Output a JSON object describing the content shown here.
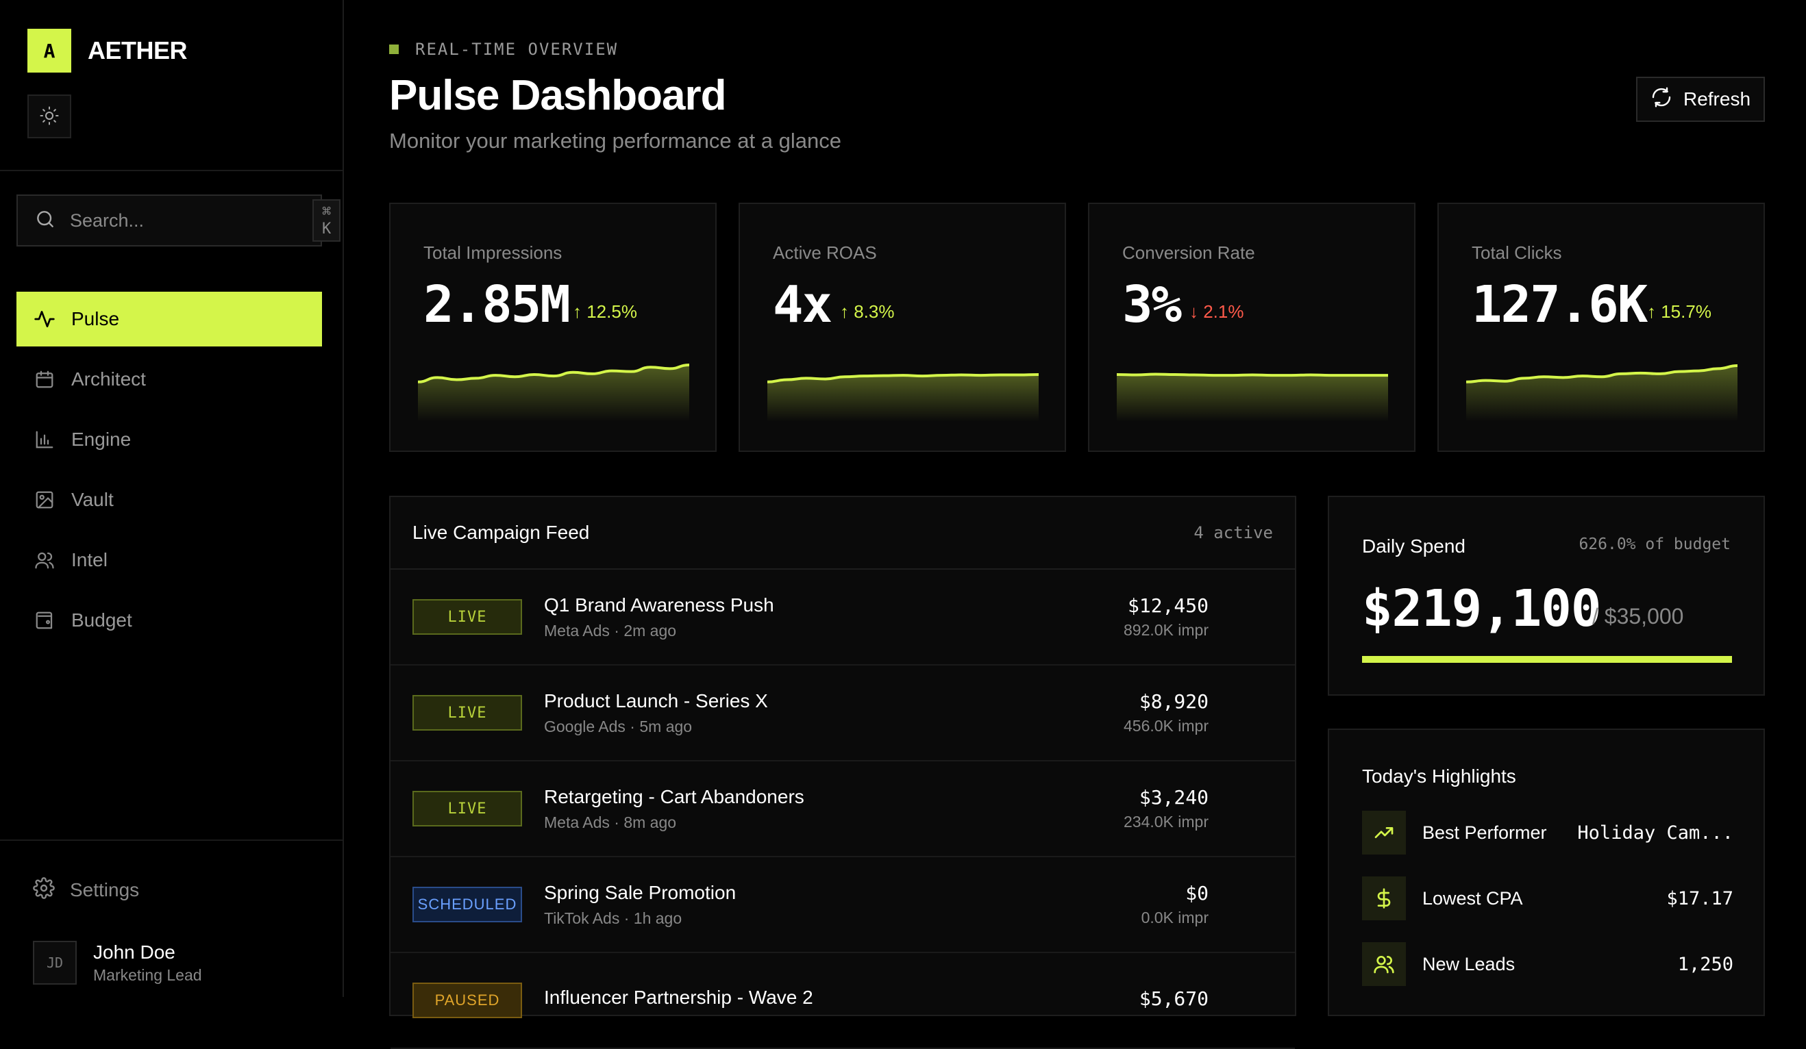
{
  "brand": {
    "logo": "A",
    "name": "AETHER"
  },
  "search": {
    "placeholder": "Search...",
    "shortcut": "⌘ K"
  },
  "nav": [
    {
      "label": "Pulse",
      "icon": "activity-icon",
      "active": true
    },
    {
      "label": "Architect",
      "icon": "calendar-icon"
    },
    {
      "label": "Engine",
      "icon": "bar-chart-icon"
    },
    {
      "label": "Vault",
      "icon": "image-icon"
    },
    {
      "label": "Intel",
      "icon": "users-icon"
    },
    {
      "label": "Budget",
      "icon": "wallet-icon"
    }
  ],
  "settings_label": "Settings",
  "user": {
    "initials": "JD",
    "name": "John Doe",
    "role": "Marketing Lead"
  },
  "header": {
    "eyebrow": "REAL-TIME OVERVIEW",
    "title": "Pulse Dashboard",
    "subtitle": "Monitor your marketing performance at a glance",
    "refresh_label": "Refresh"
  },
  "colors": {
    "accent": "#d4f54a",
    "negative": "#ff5a4a",
    "background": "#000000",
    "card": "#0a0a0a"
  },
  "kpis": [
    {
      "label": "Total Impressions",
      "value": "2.85M",
      "delta": "↑ 12.5%",
      "trend": "up",
      "spark": [
        30,
        42,
        36,
        40,
        48,
        44,
        50,
        46,
        56,
        52,
        60,
        58,
        70,
        66,
        76
      ]
    },
    {
      "label": "Active ROAS",
      "value": "4x",
      "delta": "↑ 8.3%",
      "trend": "up",
      "spark": [
        30,
        36,
        40,
        38,
        44,
        46,
        47,
        48,
        46,
        48,
        49,
        48,
        49,
        49,
        50
      ]
    },
    {
      "label": "Conversion Rate",
      "value": "3%",
      "delta": "↓ 2.1%",
      "trend": "down",
      "spark": [
        50,
        49,
        51,
        50,
        49,
        48,
        48,
        49,
        48,
        48,
        49,
        48,
        48,
        48,
        48
      ]
    },
    {
      "label": "Total Clicks",
      "value": "127.6K",
      "delta": "↑ 15.7%",
      "trend": "up",
      "spark": [
        30,
        34,
        32,
        40,
        44,
        42,
        46,
        44,
        52,
        54,
        52,
        58,
        60,
        66,
        74
      ]
    }
  ],
  "feed": {
    "title": "Live Campaign Feed",
    "count": "4 active",
    "rows": [
      {
        "status": "LIVE",
        "kind": "live",
        "title": "Q1 Brand Awareness Push",
        "meta": "Meta Ads · 2m ago",
        "amount": "$12,450",
        "impr": "892.0K impr"
      },
      {
        "status": "LIVE",
        "kind": "live",
        "title": "Product Launch - Series X",
        "meta": "Google Ads · 5m ago",
        "amount": "$8,920",
        "impr": "456.0K impr"
      },
      {
        "status": "LIVE",
        "kind": "live",
        "title": "Retargeting - Cart Abandoners",
        "meta": "Meta Ads · 8m ago",
        "amount": "$3,240",
        "impr": "234.0K impr"
      },
      {
        "status": "SCHEDULED",
        "kind": "scheduled",
        "title": "Spring Sale Promotion",
        "meta": "TikTok Ads · 1h ago",
        "amount": "$0",
        "impr": "0.0K impr"
      },
      {
        "status": "PAUSED",
        "kind": "paused",
        "title": "Influencer Partnership - Wave 2",
        "meta": "",
        "amount": "$5,670",
        "impr": ""
      }
    ]
  },
  "spend": {
    "title": "Daily Spend",
    "pct": "626.0% of budget",
    "amount": "$219,100",
    "budget": "/ $35,000",
    "fill": 1.0
  },
  "highlights": {
    "title": "Today's Highlights",
    "items": [
      {
        "label": "Best Performer",
        "value": "Holiday Cam...",
        "icon": "trending-up-icon"
      },
      {
        "label": "Lowest CPA",
        "value": "$17.17",
        "icon": "dollar-icon"
      },
      {
        "label": "New Leads",
        "value": "1,250",
        "icon": "users-icon"
      }
    ]
  }
}
